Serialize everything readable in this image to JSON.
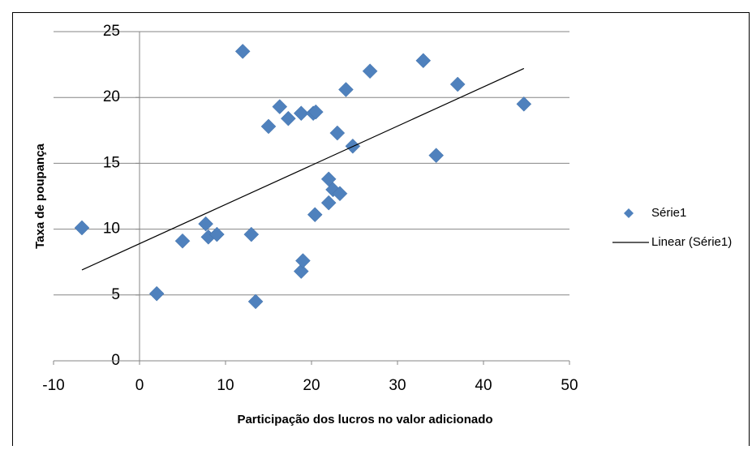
{
  "chart_data": {
    "type": "scatter",
    "x_label": "Participação dos lucros no valor adicionado",
    "y_label": "Taxa de poupança",
    "xlim": [
      -10,
      50
    ],
    "xticks": [
      -10,
      0,
      10,
      20,
      30,
      40,
      50
    ],
    "ylim": [
      0,
      25
    ],
    "yticks": [
      0,
      5,
      10,
      15,
      20,
      25
    ],
    "grid": true,
    "legend": "right",
    "series": [
      {
        "name": "Série1",
        "color": "#4f81bd",
        "x": [
          -6.7,
          2,
          5,
          7.7,
          8,
          9,
          12,
          13,
          13.5,
          15,
          16.3,
          17.3,
          18.8,
          18.8,
          19,
          20.2,
          20.5,
          20.4,
          22,
          22,
          22.5,
          23,
          23.3,
          24,
          24.8,
          26.8,
          33,
          34.5,
          37,
          44.7
        ],
        "values": [
          10.1,
          5.1,
          9.1,
          10.4,
          9.4,
          9.6,
          23.5,
          9.6,
          4.5,
          17.8,
          19.3,
          18.4,
          18.8,
          6.8,
          7.6,
          18.8,
          18.9,
          11.1,
          13.8,
          12,
          13,
          17.3,
          12.7,
          20.6,
          16.3,
          22,
          22.8,
          15.6,
          21,
          19.5
        ]
      },
      {
        "name": "Linear (Série1)",
        "color": "#000000",
        "type": "line",
        "x": [
          -6.7,
          44.7
        ],
        "values": [
          6.9,
          22.2
        ]
      }
    ]
  }
}
